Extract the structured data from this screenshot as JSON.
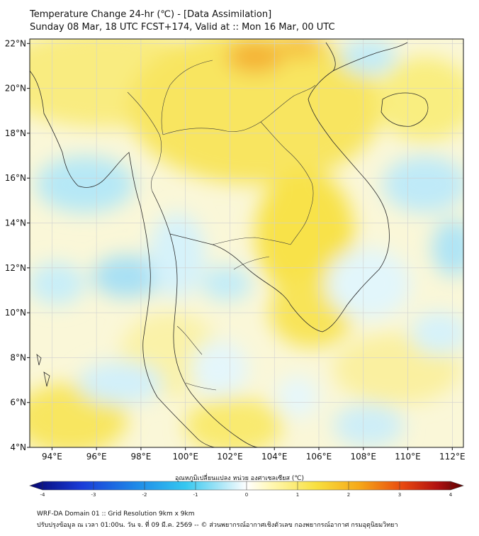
{
  "header": {
    "title": "Temperature Change 24-hr (℃) - [Data Assimilation]",
    "subtitle": "Sunday 08 Mar, 18 UTC FCST+174, Valid at :: Mon 16 Mar, 00 UTC"
  },
  "map": {
    "lon_range": [
      93,
      112.5
    ],
    "lat_range": [
      4,
      22.2
    ],
    "lon_ticks": [
      "94°E",
      "96°E",
      "98°E",
      "100°E",
      "102°E",
      "104°E",
      "106°E",
      "108°E",
      "110°E",
      "112°E"
    ],
    "lat_ticks": [
      "22°N",
      "20°N",
      "18°N",
      "16°N",
      "14°N",
      "12°N",
      "10°N",
      "8°N",
      "6°N",
      "4°N"
    ],
    "lon_tick_values": [
      94,
      96,
      98,
      100,
      102,
      104,
      106,
      108,
      110,
      112
    ],
    "lat_tick_values": [
      22,
      20,
      18,
      16,
      14,
      12,
      10,
      8,
      6,
      4
    ]
  },
  "colorbar": {
    "label": "อุณหภูมิเปลี่ยนแปลง หน่วย องศาเซลเซียส (℃)",
    "min": -4,
    "max": 4,
    "tick_labels": [
      "-4",
      "-3",
      "-2",
      "-1",
      "0",
      "1",
      "2",
      "3",
      "4"
    ],
    "tick_values": [
      -4,
      -3,
      -2,
      -1,
      0,
      1,
      2,
      3,
      4
    ]
  },
  "footer": {
    "line1": "WRF-DA Domain 01 :: Grid Resolution 9km x 9km",
    "line2": "ปรับปรุงข้อมูล ณ เวลา 01:00น. วัน จ. ที่ 09 มี.ค. 2569 -- © ส่วนพยากรณ์อากาศเชิงตัวเลข กองพยากรณ์อากาศ กรมอุตุนิยมวิทยา"
  },
  "colors": {
    "cold_dark": "#0a0a8c",
    "cold": "#1ab0e8",
    "neutral": "#f4f8ff",
    "warm": "#f8ee60",
    "hot": "#f4a018",
    "hot_dark": "#7a0000",
    "coast": "#222222",
    "grid": "#d0d0d0"
  }
}
